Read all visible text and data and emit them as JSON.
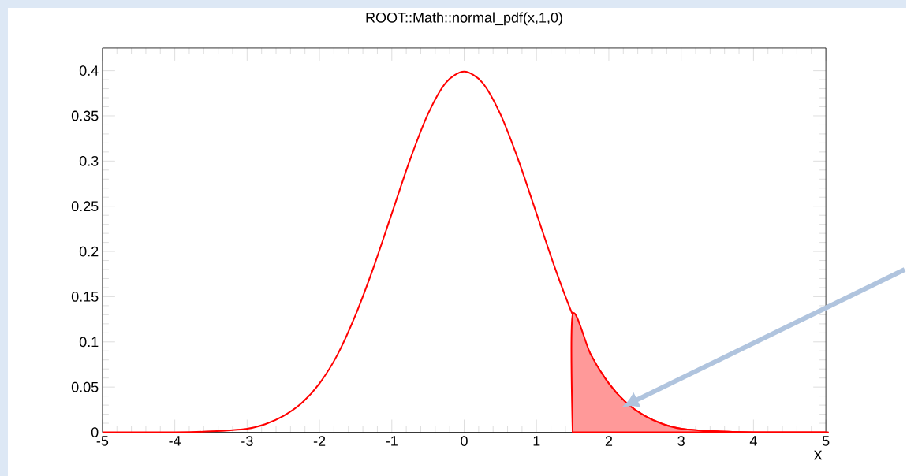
{
  "chart_data": {
    "type": "line",
    "title": "ROOT::Math::normal_pdf(x,1,0)",
    "xlabel": "x",
    "series": [
      {
        "color": "#ff0000",
        "x": [
          -5,
          -4.5,
          -4,
          -3.5,
          -3,
          -2.75,
          -2.5,
          -2.25,
          -2,
          -1.75,
          -1.5,
          -1.25,
          -1,
          -0.75,
          -0.5,
          -0.25,
          0,
          0.25,
          0.5,
          0.75,
          1,
          1.25,
          1.5,
          1.75,
          2,
          2.25,
          2.5,
          2.75,
          3,
          3.5,
          4,
          4.5,
          5
        ],
        "values": [
          0,
          0,
          0,
          0.001,
          0.004,
          0.009,
          0.018,
          0.032,
          0.054,
          0.086,
          0.13,
          0.183,
          0.242,
          0.301,
          0.352,
          0.387,
          0.399,
          0.387,
          0.352,
          0.301,
          0.242,
          0.183,
          0.13,
          0.086,
          0.054,
          0.032,
          0.018,
          0.009,
          0.004,
          0.001,
          0,
          0,
          0
        ]
      },
      {
        "type": "area",
        "color": "#ff9999",
        "x": [
          1.5,
          1.75,
          2,
          2.25,
          2.5,
          2.75,
          3,
          3.5,
          4,
          4.5,
          5
        ],
        "values": [
          0.13,
          0.086,
          0.054,
          0.032,
          0.018,
          0.009,
          0.004,
          0.001,
          0,
          0,
          0
        ]
      }
    ],
    "xlim": [
      -5,
      5
    ],
    "ylim": [
      0,
      0.425
    ],
    "xticks": [
      -5,
      -4,
      -3,
      -2,
      -1,
      0,
      1,
      2,
      3,
      4,
      5
    ],
    "yticks": [
      0,
      0.05,
      0.1,
      0.15,
      0.2,
      0.25,
      0.3,
      0.35,
      0.4
    ]
  }
}
